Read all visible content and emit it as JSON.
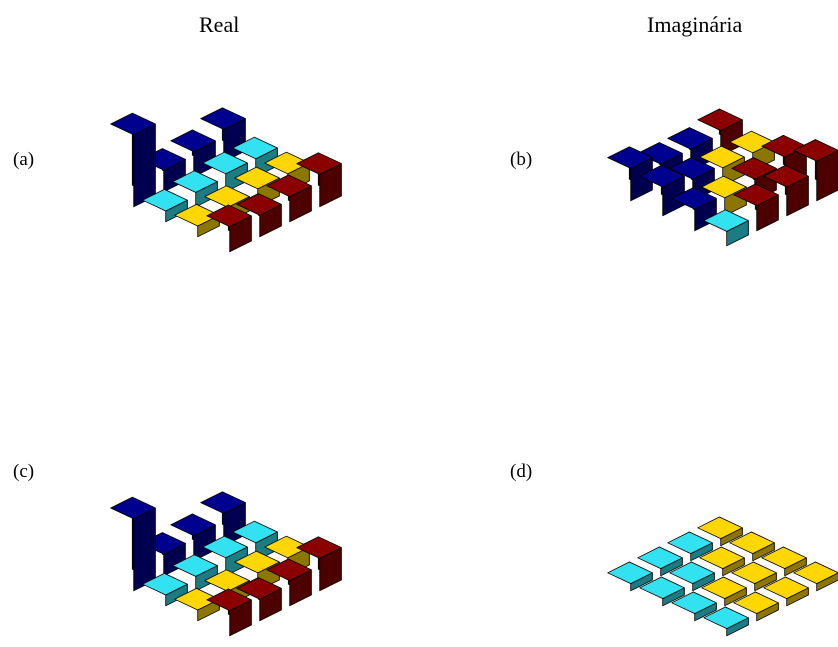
{
  "header": {
    "real_title": "Real",
    "imag_title": "Imaginária"
  },
  "panels": [
    {
      "label": "(a)"
    },
    {
      "label": "(b)"
    },
    {
      "label": "(c)"
    },
    {
      "label": "(d)"
    }
  ],
  "chart_data": [
    {
      "type": "bar3d",
      "label": "(a)",
      "rows": 4,
      "cols": 4,
      "values": [
        [
          1.0,
          -0.15,
          0.15,
          0.35
        ],
        [
          -0.3,
          -0.2,
          0.2,
          0.3
        ],
        [
          -0.35,
          -0.25,
          0.25,
          0.35
        ],
        [
          -0.45,
          -0.25,
          0.25,
          0.45
        ]
      ]
    },
    {
      "type": "bar3d",
      "label": "(b)",
      "rows": 4,
      "cols": 4,
      "values": [
        [
          -0.45,
          -0.4,
          -0.3,
          -0.2
        ],
        [
          -0.3,
          -0.3,
          0.25,
          0.35
        ],
        [
          -0.3,
          0.25,
          0.3,
          0.4
        ],
        [
          0.35,
          0.25,
          0.4,
          0.55
        ]
      ]
    },
    {
      "type": "bar3d",
      "label": "(c)",
      "rows": 4,
      "cols": 4,
      "values": [
        [
          1.0,
          -0.15,
          0.15,
          0.35
        ],
        [
          -0.3,
          -0.2,
          0.2,
          0.3
        ],
        [
          -0.35,
          -0.25,
          0.25,
          0.35
        ],
        [
          -0.45,
          -0.25,
          0.25,
          0.45
        ]
      ]
    },
    {
      "type": "bar3d",
      "label": "(d)",
      "rows": 4,
      "cols": 4,
      "values": [
        [
          -0.1,
          -0.1,
          -0.1,
          -0.1
        ],
        [
          -0.1,
          -0.1,
          0.1,
          0.1
        ],
        [
          -0.1,
          0.1,
          0.1,
          0.1
        ],
        [
          0.1,
          0.1,
          0.1,
          0.1
        ]
      ]
    }
  ]
}
